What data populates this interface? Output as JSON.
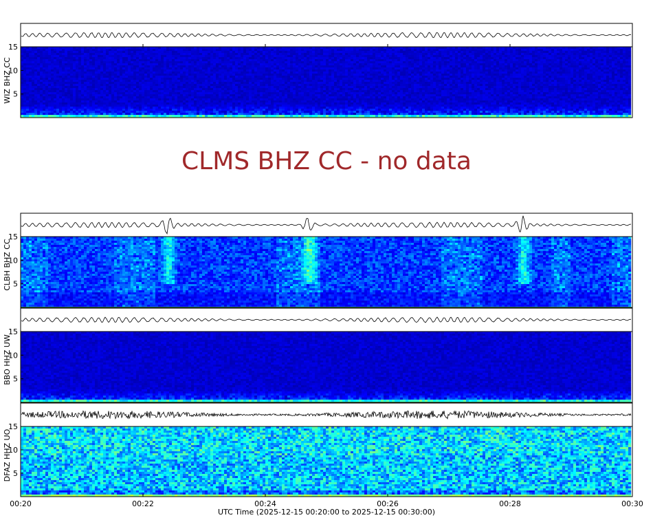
{
  "chart_data": [
    {
      "type": "heatmap",
      "station": "WIZ BHZ CC",
      "has_data": true,
      "ylim": [
        0,
        15
      ],
      "yticks": [
        "5",
        "10",
        "15"
      ],
      "color_profile": "quiet",
      "colormap": [
        "#00007f",
        "#0000ff",
        "#0080ff",
        "#00ffff",
        "#80ff80",
        "#ffff00",
        "#ff8000",
        "#ff0000"
      ]
    },
    {
      "type": "heatmap",
      "station": "CLMS BHZ CC",
      "has_data": false,
      "message": "CLMS BHZ CC - no data"
    },
    {
      "type": "heatmap",
      "station": "CLBH BHZ CC",
      "has_data": true,
      "ylim": [
        0,
        15
      ],
      "yticks": [
        "5",
        "10",
        "15"
      ],
      "color_profile": "active",
      "events_minutes": [
        22.4,
        24.7,
        28.2
      ]
    },
    {
      "type": "heatmap",
      "station": "BBO HHZ UW",
      "has_data": true,
      "ylim": [
        0,
        15
      ],
      "yticks": [
        "5",
        "10",
        "15"
      ],
      "color_profile": "quiet"
    },
    {
      "type": "heatmap",
      "station": "DFAZ HHZ UO",
      "has_data": true,
      "ylim": [
        0,
        15
      ],
      "yticks": [
        "5",
        "10",
        "15"
      ],
      "color_profile": "noisy"
    }
  ],
  "xaxis": {
    "ticks": [
      "00:20",
      "00:22",
      "00:24",
      "00:26",
      "00:28",
      "00:30"
    ],
    "range_minutes": [
      20,
      30
    ],
    "label": "UTC Time (2025-12-15 00:20:00 to 2025-12-15 00:30:00)"
  }
}
